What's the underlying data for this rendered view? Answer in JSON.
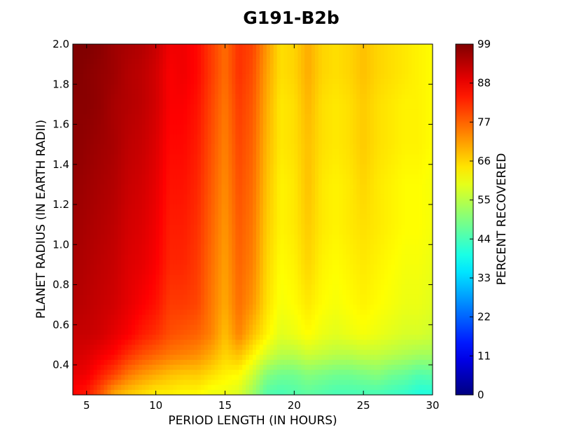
{
  "chart_data": {
    "type": "heatmap",
    "title": "G191-B2b",
    "xlabel": "PERIOD LENGTH (IN HOURS)",
    "ylabel": "PLANET RADIUS (IN EARTH RADII)",
    "colorbar_label": "PERCENT RECOVERED",
    "xlim": [
      4,
      30
    ],
    "ylim": [
      0.25,
      2.0
    ],
    "zlim": [
      0,
      99
    ],
    "colormap": "jet",
    "x_ticks": [
      5,
      10,
      15,
      20,
      25,
      30
    ],
    "x_tick_labels": [
      "5",
      "10",
      "15",
      "20",
      "25",
      "30"
    ],
    "y_ticks": [
      0.4,
      0.6,
      0.8,
      1.0,
      1.2,
      1.4,
      1.6,
      1.8,
      2.0
    ],
    "y_tick_labels": [
      "0.4",
      "0.6",
      "0.8",
      "1.0",
      "1.2",
      "1.4",
      "1.6",
      "1.8",
      "2.0"
    ],
    "colorbar_ticks": [
      0,
      11,
      22,
      33,
      44,
      55,
      66,
      77,
      88,
      99
    ],
    "colorbar_tick_labels": [
      "0",
      "11",
      "22",
      "33",
      "44",
      "55",
      "66",
      "77",
      "88",
      "99"
    ],
    "x": [
      4,
      5,
      6,
      7,
      8,
      9,
      10,
      11,
      12,
      13,
      14,
      15,
      16,
      17,
      18,
      19,
      20,
      21,
      22,
      23,
      24,
      25,
      26,
      27,
      28,
      29,
      30
    ],
    "y": [
      0.25,
      0.35,
      0.45,
      0.55,
      0.7,
      0.9,
      1.1,
      1.3,
      1.5,
      1.7,
      1.85,
      2.0
    ],
    "z": [
      [
        86,
        84,
        78,
        70,
        67,
        65,
        63,
        63,
        62,
        62,
        60,
        60,
        58,
        52,
        45,
        44,
        45,
        46,
        45,
        44,
        44,
        44,
        44,
        43,
        42,
        40,
        40
      ],
      [
        89,
        88,
        84,
        80,
        75,
        72,
        70,
        68,
        67,
        67,
        65,
        63,
        62,
        57,
        50,
        48,
        48,
        50,
        49,
        48,
        48,
        49,
        50,
        48,
        47,
        45,
        46
      ],
      [
        91,
        90,
        88,
        86,
        82,
        79,
        77,
        75,
        74,
        73,
        70,
        66,
        68,
        63,
        58,
        55,
        55,
        57,
        56,
        55,
        55,
        56,
        56,
        55,
        54,
        53,
        53
      ],
      [
        92,
        92,
        91,
        89,
        87,
        84,
        82,
        79,
        78,
        77,
        74,
        68,
        74,
        68,
        63,
        59,
        60,
        62,
        60,
        59,
        60,
        61,
        60,
        59,
        58,
        58,
        57
      ],
      [
        94,
        93,
        92,
        91,
        89,
        87,
        85,
        81,
        81,
        80,
        75,
        70,
        76,
        72,
        65,
        61,
        62,
        64,
        62,
        61,
        62,
        63,
        62,
        61,
        60,
        60,
        59
      ],
      [
        95,
        94,
        93,
        92,
        90,
        89,
        87,
        83,
        83,
        81,
        76,
        71,
        77,
        74,
        66,
        62,
        63,
        66,
        63,
        62,
        63,
        64,
        63,
        62,
        61,
        61,
        60
      ],
      [
        96,
        95,
        94,
        93,
        91,
        90,
        88,
        84,
        84,
        82,
        77,
        72,
        78,
        75,
        67,
        63,
        64,
        67,
        64,
        63,
        64,
        65,
        64,
        63,
        62,
        62,
        61
      ],
      [
        97,
        96,
        95,
        94,
        92,
        91,
        89,
        85,
        85,
        83,
        78,
        73,
        79,
        76,
        68,
        63,
        64,
        68,
        64,
        63,
        64,
        66,
        64,
        63,
        62,
        62,
        61
      ],
      [
        98,
        97,
        96,
        95,
        93,
        92,
        90,
        86,
        86,
        84,
        79,
        74,
        80,
        77,
        69,
        64,
        65,
        68,
        65,
        64,
        65,
        67,
        65,
        64,
        63,
        63,
        62
      ],
      [
        98,
        98,
        97,
        95,
        94,
        93,
        91,
        87,
        87,
        85,
        80,
        75,
        81,
        78,
        70,
        64,
        65,
        69,
        65,
        64,
        65,
        67,
        65,
        64,
        63,
        63,
        62
      ],
      [
        99,
        98,
        97,
        96,
        94,
        93,
        91,
        87,
        88,
        86,
        81,
        76,
        82,
        79,
        71,
        65,
        66,
        70,
        66,
        65,
        66,
        68,
        66,
        65,
        64,
        63,
        62
      ],
      [
        99,
        99,
        98,
        96,
        95,
        94,
        92,
        88,
        88,
        86,
        81,
        76,
        82,
        80,
        72,
        65,
        66,
        70,
        66,
        65,
        66,
        68,
        66,
        65,
        64,
        63,
        62
      ]
    ]
  }
}
